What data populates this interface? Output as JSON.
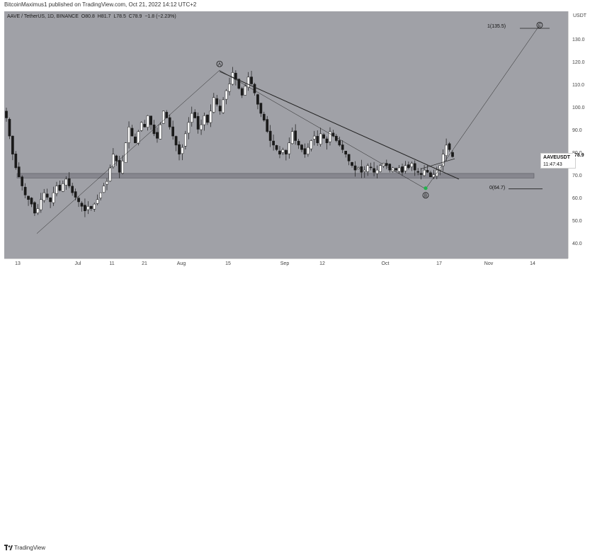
{
  "header": {
    "text": "BitcoinMaximus1 published on TradingView.com, Oct 21, 2022 14:12 UTC+2"
  },
  "legend": {
    "symbol": "AAVE / TetherUS, 1D, BINANCE",
    "o_label": "O",
    "o_value": "80.8",
    "h_label": "H",
    "h_value": "81.7",
    "l_label": "L",
    "l_value": "78.5",
    "c_label": "C",
    "c_value": "78.9",
    "change": "−1.8 (−2.23%)"
  },
  "price_axis": {
    "unit": "USDT",
    "ticks": [
      "130.0",
      "120.0",
      "110.0",
      "100.0",
      "90.0",
      "80.0",
      "70.0",
      "60.0",
      "50.0",
      "40.0"
    ]
  },
  "time_axis": {
    "ticks": [
      "13",
      "Jul",
      "11",
      "21",
      "Aug",
      "15",
      "Sep",
      "12",
      "Oct",
      "17",
      "Nov",
      "14"
    ]
  },
  "price_label": {
    "symbol": "AAVEUSDT",
    "price": "78.9",
    "countdown": "11:47:43"
  },
  "annotations": {
    "fib_top": "1(135.5)",
    "fib_bottom": "0(64.7)",
    "wave_a": "A",
    "wave_b": "B",
    "wave_c": "C"
  },
  "footer": {
    "brand": "TradingView"
  },
  "colors": {
    "background": "#a0a1a7",
    "support_zone": "#7f8088",
    "candle_up": "#ffffff",
    "candle_down": "#1a1a1a",
    "b_marker": "#22b14c"
  },
  "chart_data": {
    "type": "candlestick",
    "symbol": "AAVEUSDT",
    "timeframe": "1D",
    "ylim": [
      34,
      143
    ],
    "y_ticks": [
      40,
      50,
      60,
      70,
      80,
      90,
      100,
      110,
      120,
      130
    ],
    "last": {
      "open": 80.8,
      "high": 81.7,
      "low": 78.5,
      "close": 78.9,
      "change": -1.8,
      "change_pct": -2.23
    },
    "support_zone": [
      69.5,
      71.5
    ],
    "fib_levels": [
      {
        "label": "1(135.5)",
        "value": 135.5
      },
      {
        "label": "0(64.7)",
        "value": 64.7
      }
    ],
    "waves": [
      {
        "label": "A",
        "value": 117
      },
      {
        "label": "B",
        "value": 64.7
      },
      {
        "label": "C",
        "value": 136
      }
    ],
    "closes": [
      96,
      88,
      80,
      74,
      70,
      66,
      62,
      60,
      58,
      54,
      56,
      60,
      63,
      61,
      59,
      63,
      66,
      64,
      67,
      69,
      66,
      63,
      61,
      59,
      57,
      55,
      57,
      56,
      58,
      60,
      63,
      66,
      68,
      74,
      80,
      77,
      72,
      77,
      85,
      92,
      88,
      85,
      90,
      94,
      92,
      97,
      93,
      89,
      87,
      93,
      99,
      96,
      92,
      88,
      84,
      80,
      83,
      89,
      94,
      98,
      96,
      91,
      93,
      97,
      94,
      99,
      105,
      102,
      99,
      104,
      108,
      111,
      116,
      113,
      109,
      106,
      110,
      114,
      111,
      107,
      102,
      98,
      95,
      90,
      86,
      84,
      82,
      80,
      82,
      80,
      85,
      90,
      86,
      84,
      82,
      80,
      83,
      86,
      88,
      85,
      89,
      87,
      85,
      90,
      88,
      86,
      84,
      82,
      80,
      77,
      75,
      73,
      74,
      72,
      73,
      75,
      74,
      72,
      73,
      75,
      76,
      75,
      73,
      74,
      73,
      74,
      72,
      75,
      74,
      76,
      73,
      72,
      71,
      73,
      72,
      70,
      71,
      73,
      75,
      80,
      84,
      82,
      78.9
    ]
  }
}
